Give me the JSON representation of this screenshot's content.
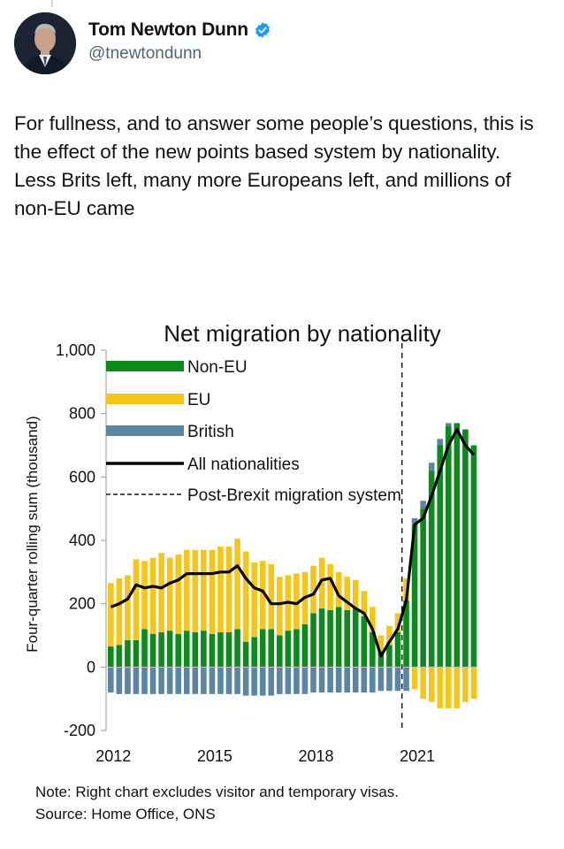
{
  "tweet": {
    "display_name": "Tom Newton Dunn",
    "handle": "@tnewtondunn",
    "text": "For fullness, and to answer some people’s questions, this is the effect of the new points based system by nationality. Less Brits left, many more Europeans left, and millions of non-EU came",
    "avatar_icon": "avatar-photo",
    "verified_icon": "verified-badge-icon",
    "verified_color": "#1d9bf0"
  },
  "chart_data": {
    "type": "bar",
    "stacked": true,
    "title": "Net migration by nationality",
    "ylabel": "Four-quarter rolling sum (thousand)",
    "xlabel": "",
    "ylim": [
      -200,
      1000
    ],
    "yticks": [
      "1,000",
      "800",
      "600",
      "400",
      "200",
      "0",
      "-200"
    ],
    "ytick_values": [
      1000,
      800,
      600,
      400,
      200,
      0,
      -200
    ],
    "xticks": [
      "2012",
      "2015",
      "2018",
      "2021"
    ],
    "xtick_categories": [
      "2012 Q1",
      "2015 Q1",
      "2018 Q1",
      "2021 Q1"
    ],
    "categories": [
      "2012 Q1",
      "2012 Q2",
      "2012 Q3",
      "2012 Q4",
      "2013 Q1",
      "2013 Q2",
      "2013 Q3",
      "2013 Q4",
      "2014 Q1",
      "2014 Q2",
      "2014 Q3",
      "2014 Q4",
      "2015 Q1",
      "2015 Q2",
      "2015 Q3",
      "2015 Q4",
      "2016 Q1",
      "2016 Q2",
      "2016 Q3",
      "2016 Q4",
      "2017 Q1",
      "2017 Q2",
      "2017 Q3",
      "2017 Q4",
      "2018 Q1",
      "2018 Q2",
      "2018 Q3",
      "2018 Q4",
      "2019 Q1",
      "2019 Q2",
      "2019 Q3",
      "2019 Q4",
      "2020 Q1",
      "2020 Q2",
      "2020 Q3",
      "2020 Q4",
      "2021 Q1",
      "2021 Q2",
      "2021 Q3",
      "2021 Q4",
      "2022 Q1",
      "2022 Q2",
      "2022 Q3",
      "2022 Q4"
    ],
    "series": [
      {
        "name": "Non-EU",
        "color": "#0c8a1c",
        "values": [
          65,
          70,
          85,
          85,
          120,
          105,
          110,
          115,
          105,
          115,
          110,
          115,
          105,
          110,
          110,
          120,
          80,
          95,
          120,
          120,
          100,
          115,
          120,
          135,
          170,
          185,
          180,
          190,
          180,
          185,
          160,
          110,
          50,
          70,
          110,
          210,
          450,
          500,
          620,
          700,
          760,
          770,
          750,
          700
        ]
      },
      {
        "name": "EU",
        "color": "#f5c518",
        "values": [
          200,
          210,
          205,
          255,
          215,
          240,
          250,
          230,
          250,
          255,
          260,
          255,
          265,
          270,
          270,
          285,
          285,
          235,
          215,
          205,
          185,
          175,
          175,
          165,
          150,
          160,
          145,
          110,
          105,
          90,
          80,
          80,
          50,
          60,
          60,
          70,
          -70,
          -100,
          -110,
          -130,
          -130,
          -130,
          -110,
          -100
        ]
      },
      {
        "name": "British",
        "color": "#5b86a3",
        "values": [
          -80,
          -85,
          -85,
          -85,
          -85,
          -85,
          -85,
          -85,
          -85,
          -85,
          -85,
          -85,
          -85,
          -85,
          -85,
          -85,
          -90,
          -90,
          -90,
          -90,
          -85,
          -85,
          -85,
          -85,
          -80,
          -80,
          -80,
          -80,
          -80,
          -80,
          -80,
          -80,
          -75,
          -75,
          -75,
          -75,
          20,
          25,
          25,
          20,
          10,
          0,
          0,
          0
        ]
      },
      {
        "name": "All nationalities",
        "color": "#000000",
        "type": "line",
        "values": [
          190,
          200,
          215,
          260,
          250,
          255,
          250,
          265,
          275,
          295,
          295,
          295,
          295,
          300,
          300,
          320,
          280,
          250,
          240,
          200,
          200,
          205,
          200,
          220,
          230,
          275,
          280,
          225,
          205,
          185,
          170,
          120,
          35,
          80,
          120,
          210,
          450,
          470,
          540,
          620,
          700,
          750,
          700,
          670
        ]
      }
    ],
    "reference_line": {
      "name": "Post-Brexit migration system",
      "x_category": "2020 Q4",
      "style": "dashed"
    },
    "legend": {
      "placement": "top-center",
      "entries": [
        "Non-EU",
        "EU",
        "British",
        "All nationalities",
        "Post-Brexit migration system"
      ]
    },
    "grid": false,
    "note": "Note: Right chart excludes visitor and temporary visas.",
    "source": "Source: Home Office, ONS"
  }
}
